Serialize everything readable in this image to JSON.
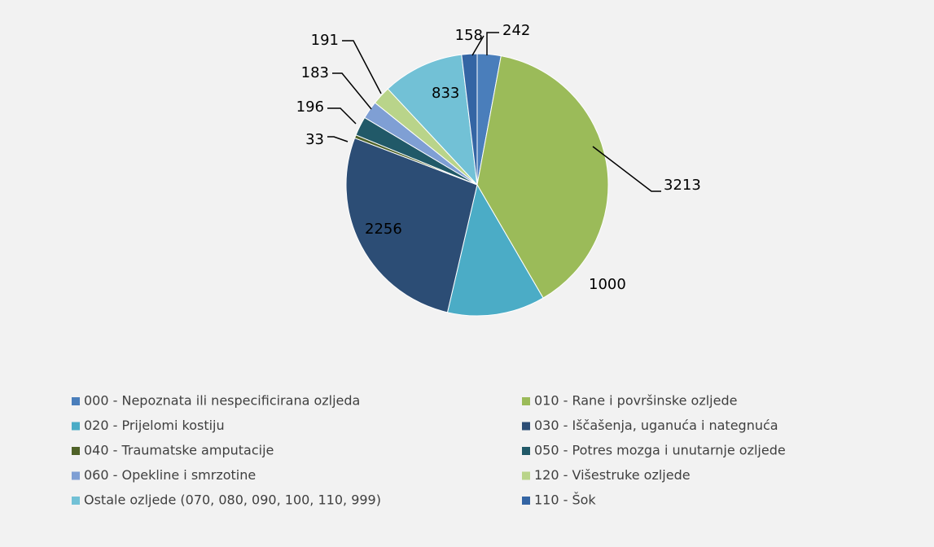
{
  "chart_data": {
    "type": "pie",
    "categories": [
      "000 - Nepoznata ili nespecificirana ozljeda",
      "010 - Rane i površinske ozljede",
      "020 - Prijelomi kostiju",
      "030 - Iščašenja, uganuća i nategnuća",
      "040 - Traumatske amputacije",
      "050 - Potres mozga i unutarnje ozljede",
      "060 - Opekline i smrzotine",
      "120 - Višestruke ozljede",
      "Ostale ozljede (070, 080, 090, 100, 110, 999)",
      "110 - Šok"
    ],
    "values": [
      242,
      3213,
      1000,
      2256,
      33,
      196,
      183,
      191,
      833,
      158
    ],
    "colors": [
      "#4a7ebb",
      "#9bbb59",
      "#4bacc6",
      "#2c4d75",
      "#4f6228",
      "#215968",
      "#7f9fd4",
      "#b9d48a",
      "#72c1d6",
      "#3465a4"
    ],
    "legend": "bottom"
  }
}
